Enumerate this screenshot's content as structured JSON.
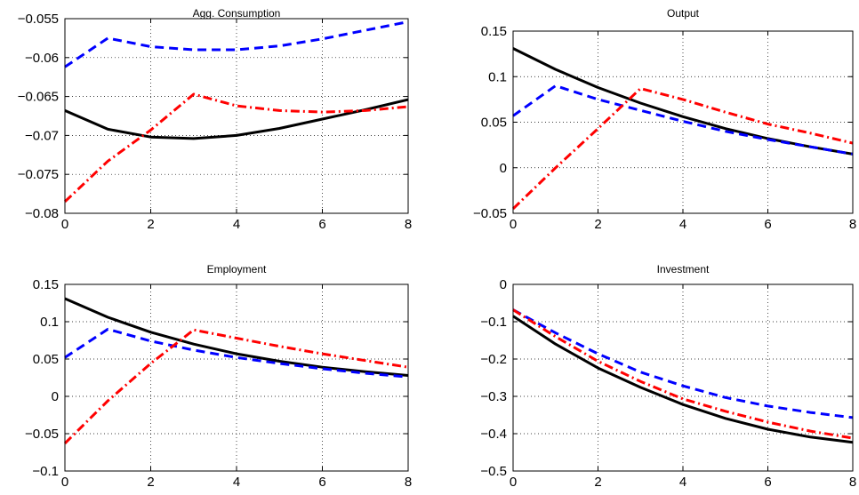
{
  "chart_data": [
    {
      "type": "line",
      "title": "Agg. Consumption",
      "xlim": [
        0,
        8
      ],
      "ylim": [
        -0.08,
        -0.055
      ],
      "xticks": [
        0,
        2,
        4,
        6,
        8
      ],
      "yticks": [
        -0.08,
        -0.075,
        -0.07,
        -0.065,
        -0.06,
        -0.055
      ],
      "xtick_labels": [
        "0",
        "2",
        "4",
        "6",
        "8"
      ],
      "ytick_labels": [
        "−0.08",
        "−0.075",
        "−0.07",
        "−0.065",
        "−0.06",
        "−0.055"
      ],
      "grid": true,
      "x": [
        0,
        1,
        2,
        3,
        4,
        5,
        6,
        7,
        8
      ],
      "series": [
        {
          "style": "solid",
          "color": "#000000",
          "values": [
            -0.0668,
            -0.0692,
            -0.0702,
            -0.0704,
            -0.07,
            -0.0691,
            -0.0679,
            -0.0667,
            -0.0654
          ]
        },
        {
          "style": "dashed",
          "color": "#0000ff",
          "values": [
            -0.0612,
            -0.0575,
            -0.0586,
            -0.059,
            -0.059,
            -0.0585,
            -0.0576,
            -0.0565,
            -0.0554
          ]
        },
        {
          "style": "dashdot",
          "color": "#ff0000",
          "values": [
            -0.0785,
            -0.0733,
            -0.0693,
            -0.0647,
            -0.0662,
            -0.0668,
            -0.067,
            -0.0668,
            -0.0663
          ]
        }
      ]
    },
    {
      "type": "line",
      "title": "Output",
      "xlim": [
        0,
        8
      ],
      "ylim": [
        -0.05,
        0.15
      ],
      "xticks": [
        0,
        2,
        4,
        6,
        8
      ],
      "yticks": [
        -0.05,
        0,
        0.05,
        0.1,
        0.15
      ],
      "xtick_labels": [
        "0",
        "2",
        "4",
        "6",
        "8"
      ],
      "ytick_labels": [
        "−0.05",
        "0",
        "0.05",
        "0.1",
        "0.15"
      ],
      "grid": true,
      "x": [
        0,
        1,
        2,
        3,
        4,
        5,
        6,
        7,
        8
      ],
      "series": [
        {
          "style": "solid",
          "color": "#000000",
          "values": [
            0.131,
            0.108,
            0.088,
            0.071,
            0.056,
            0.043,
            0.032,
            0.023,
            0.015
          ]
        },
        {
          "style": "dashed",
          "color": "#0000ff",
          "values": [
            0.057,
            0.09,
            0.075,
            0.063,
            0.051,
            0.04,
            0.031,
            0.023,
            0.015
          ]
        },
        {
          "style": "dashdot",
          "color": "#ff0000",
          "values": [
            -0.045,
            0.0,
            0.043,
            0.087,
            0.075,
            0.061,
            0.048,
            0.038,
            0.027
          ]
        }
      ]
    },
    {
      "type": "line",
      "title": "Employment",
      "xlim": [
        0,
        8
      ],
      "ylim": [
        -0.1,
        0.15
      ],
      "xticks": [
        0,
        2,
        4,
        6,
        8
      ],
      "yticks": [
        -0.1,
        -0.05,
        0,
        0.05,
        0.1,
        0.15
      ],
      "xtick_labels": [
        "0",
        "2",
        "4",
        "6",
        "8"
      ],
      "ytick_labels": [
        "−0.1",
        "−0.05",
        "0",
        "0.05",
        "0.1",
        "0.15"
      ],
      "grid": true,
      "x": [
        0,
        1,
        2,
        3,
        4,
        5,
        6,
        7,
        8
      ],
      "series": [
        {
          "style": "solid",
          "color": "#000000",
          "values": [
            0.131,
            0.106,
            0.086,
            0.07,
            0.057,
            0.047,
            0.039,
            0.033,
            0.028
          ]
        },
        {
          "style": "dashed",
          "color": "#0000ff",
          "values": [
            0.052,
            0.09,
            0.074,
            0.062,
            0.052,
            0.044,
            0.037,
            0.031,
            0.026
          ]
        },
        {
          "style": "dashdot",
          "color": "#ff0000",
          "values": [
            -0.063,
            -0.006,
            0.044,
            0.089,
            0.078,
            0.067,
            0.057,
            0.048,
            0.039
          ]
        }
      ]
    },
    {
      "type": "line",
      "title": "Investment",
      "xlim": [
        0,
        8
      ],
      "ylim": [
        -0.5,
        0
      ],
      "xticks": [
        0,
        2,
        4,
        6,
        8
      ],
      "yticks": [
        -0.5,
        -0.4,
        -0.3,
        -0.2,
        -0.1,
        0
      ],
      "xtick_labels": [
        "0",
        "2",
        "4",
        "6",
        "8"
      ],
      "ytick_labels": [
        "−0.5",
        "−0.4",
        "−0.3",
        "−0.2",
        "−0.1",
        "0"
      ],
      "grid": true,
      "x": [
        0,
        1,
        2,
        3,
        4,
        5,
        6,
        7,
        8
      ],
      "series": [
        {
          "style": "solid",
          "color": "#000000",
          "values": [
            -0.085,
            -0.16,
            -0.224,
            -0.276,
            -0.322,
            -0.359,
            -0.388,
            -0.409,
            -0.423
          ]
        },
        {
          "style": "dashed",
          "color": "#0000ff",
          "values": [
            -0.068,
            -0.13,
            -0.186,
            -0.235,
            -0.272,
            -0.303,
            -0.326,
            -0.343,
            -0.357
          ]
        },
        {
          "style": "dashdot",
          "color": "#ff0000",
          "values": [
            -0.068,
            -0.14,
            -0.206,
            -0.26,
            -0.307,
            -0.34,
            -0.369,
            -0.393,
            -0.412
          ]
        }
      ]
    }
  ]
}
